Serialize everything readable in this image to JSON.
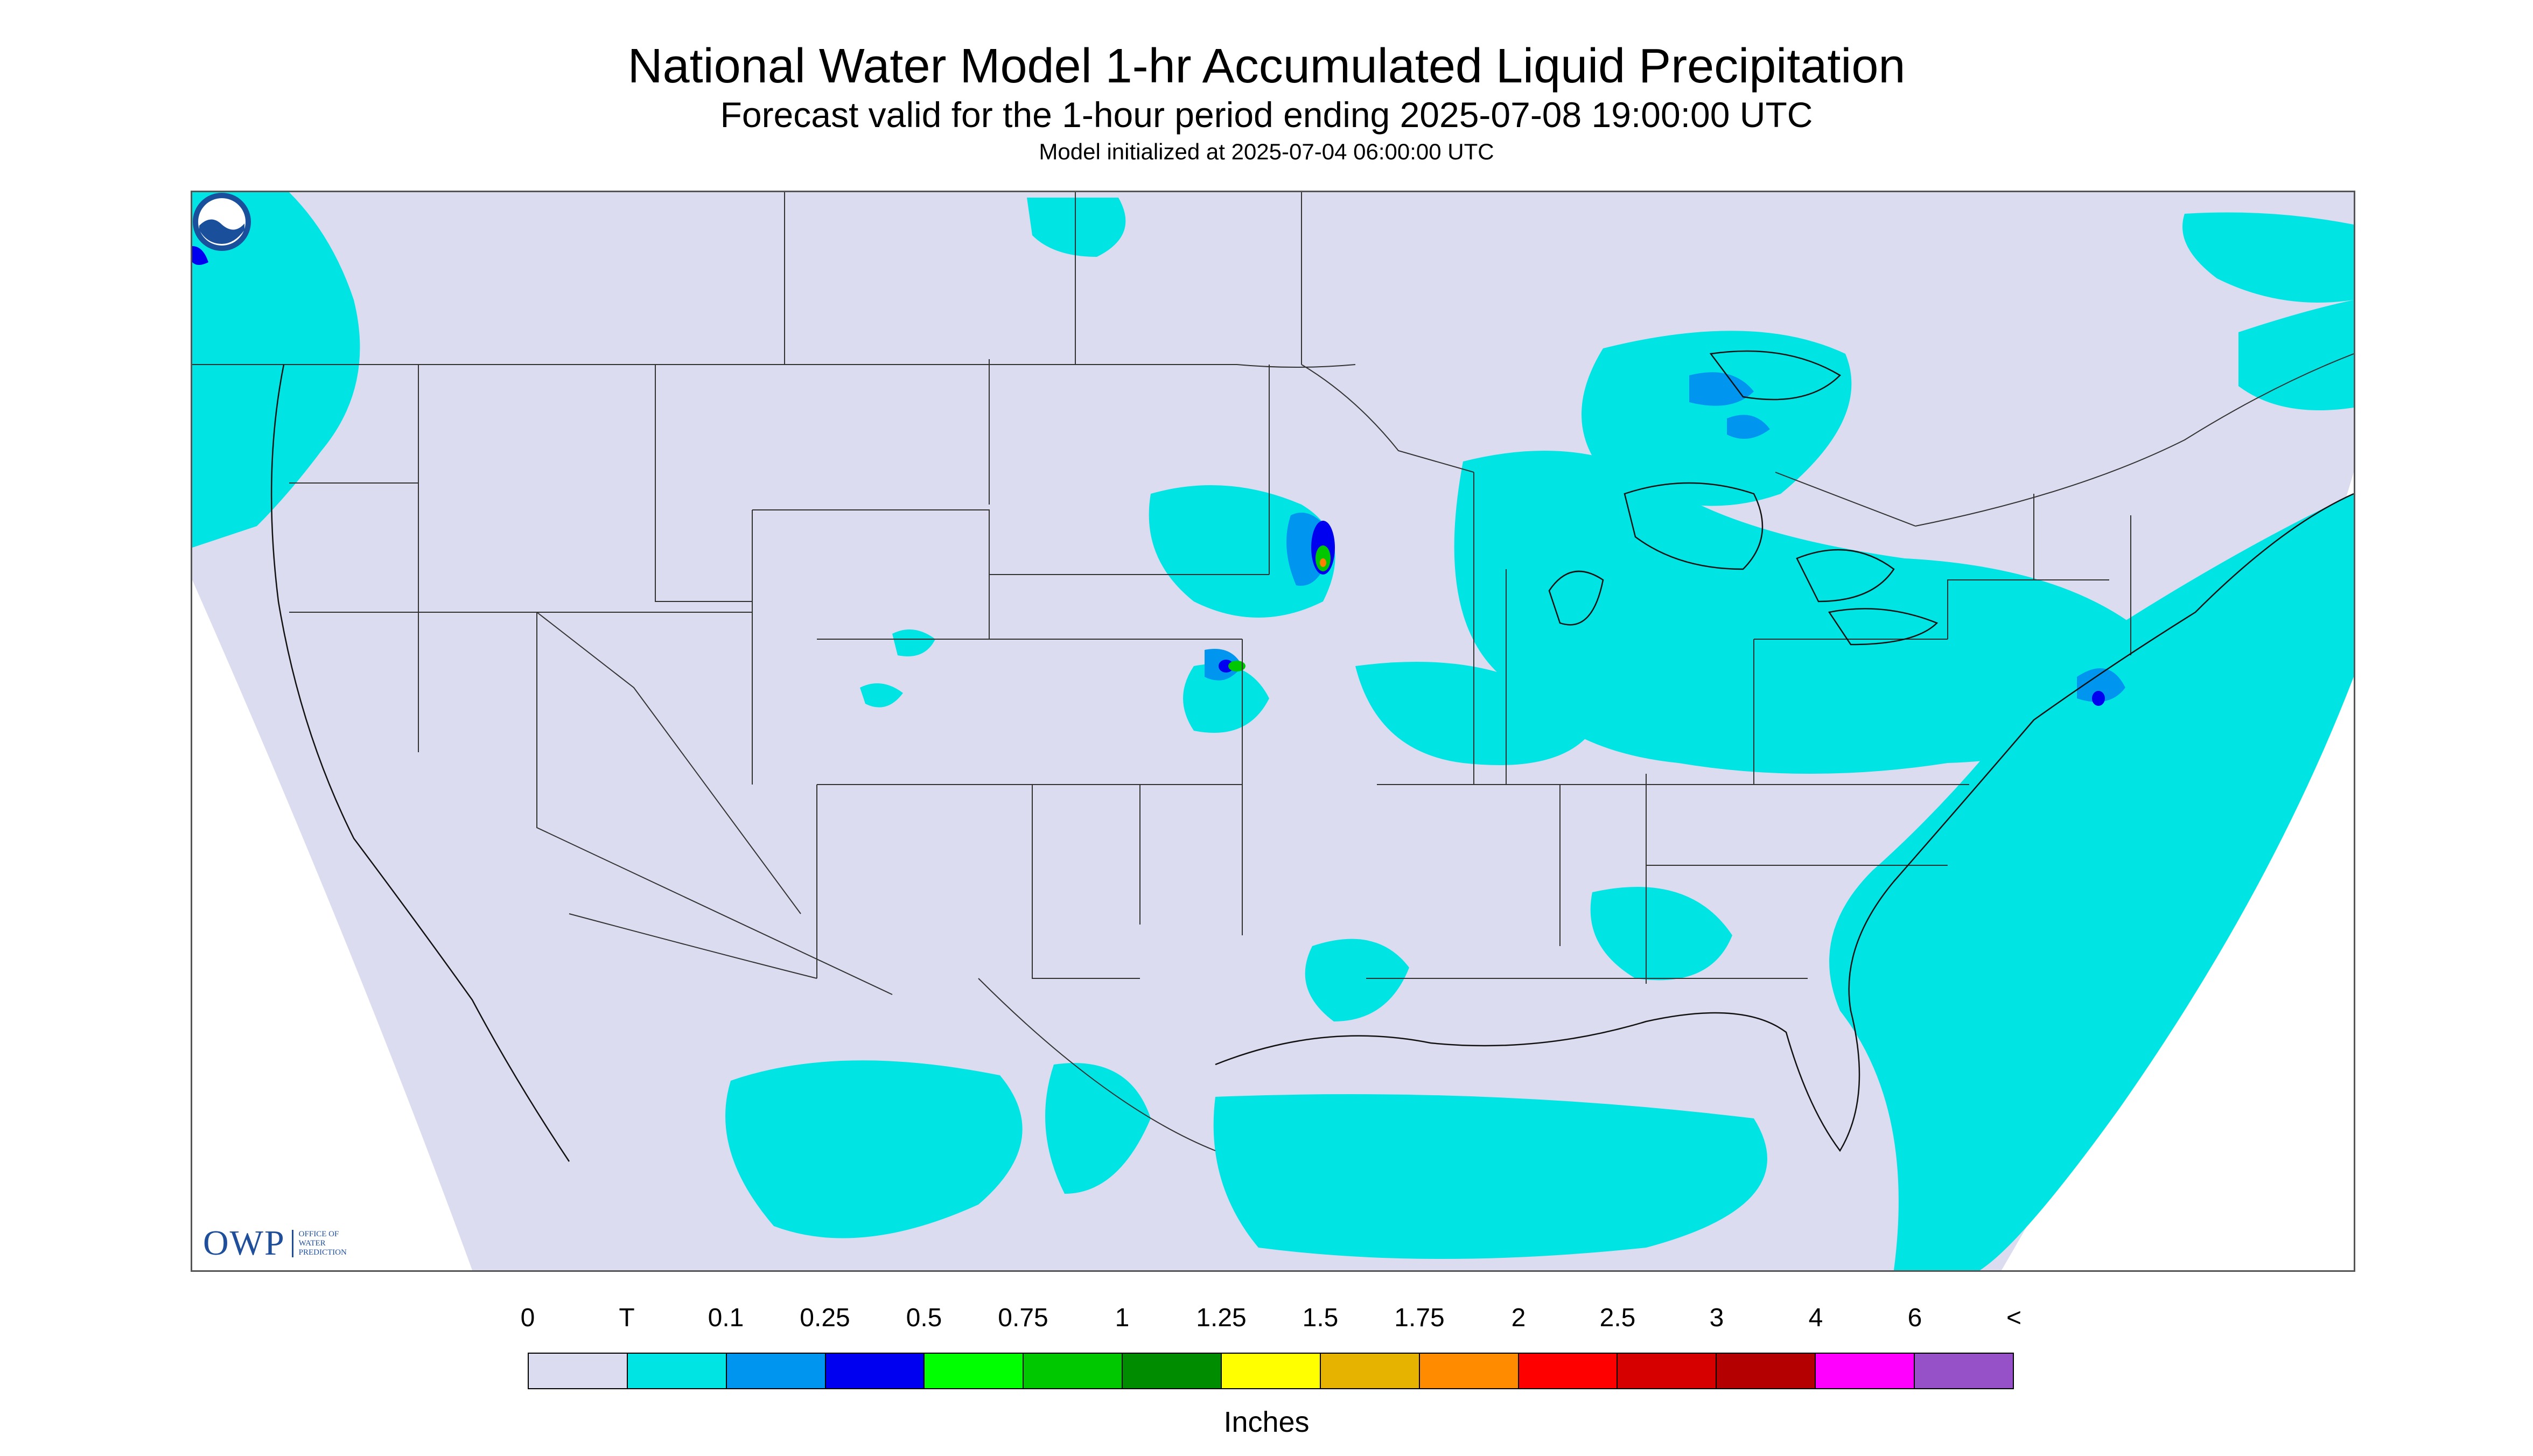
{
  "header": {
    "title": "National Water Model 1-hr Accumulated Liquid Precipitation",
    "subtitle": "Forecast valid for the 1-hour period ending 2025-07-08 19:00:00 UTC",
    "init_line": "Model initialized at 2025-07-04 06:00:00 UTC"
  },
  "map": {
    "background_color": "#dcdcf0",
    "outside_color": "#ffffff",
    "boundary_color": "#333333",
    "precip_colors": {
      "trace": "#00e4e4",
      "light": "#0096f0",
      "moderate": "#0000f0",
      "heavy_core": "#00c800",
      "peak": "#ff8000"
    }
  },
  "logos": {
    "owp_mark": "OWP",
    "owp_text": "Office of Water Prediction",
    "noaa_icon": "noaa-logo-icon"
  },
  "legend": {
    "labels": [
      "0",
      "T",
      "0.1",
      "0.25",
      "0.5",
      "0.75",
      "1",
      "1.25",
      "1.5",
      "1.75",
      "2",
      "2.5",
      "3",
      "4",
      "6",
      "<"
    ],
    "colors": [
      "#dcdcf0",
      "#00e4e4",
      "#0096f0",
      "#0000f0",
      "#00ff00",
      "#00c800",
      "#008c00",
      "#ffff00",
      "#e6b400",
      "#ff8c00",
      "#ff0000",
      "#d70000",
      "#b40000",
      "#ff00ff",
      "#9650c8"
    ],
    "units": "Inches"
  }
}
